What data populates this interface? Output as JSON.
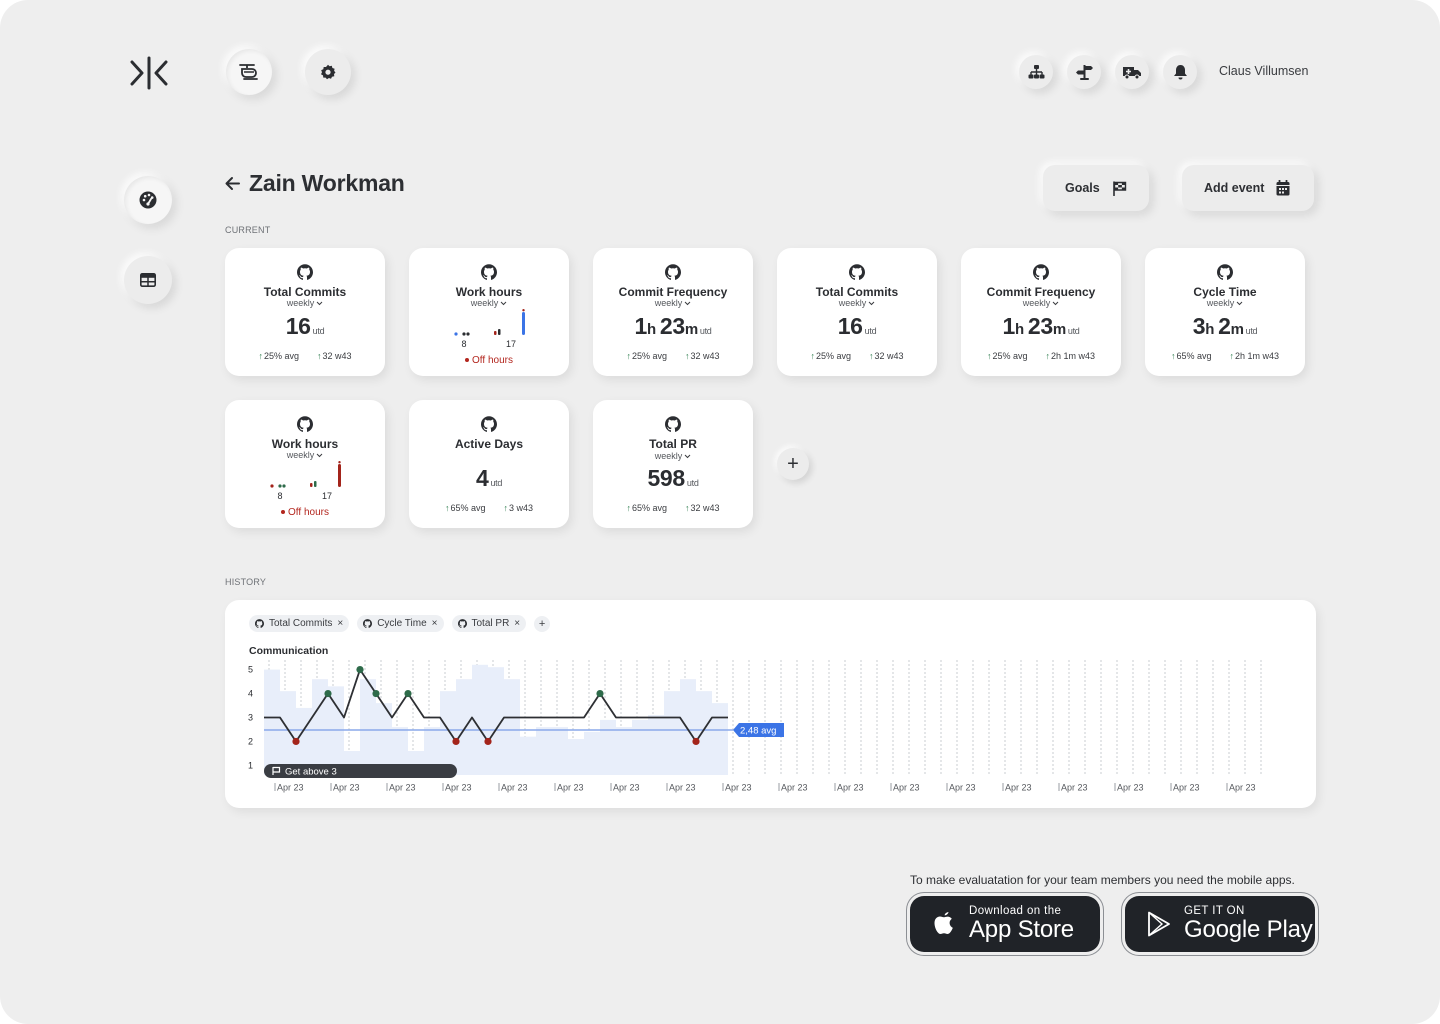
{
  "header": {
    "user_name": "Claus Villumsen",
    "icons": [
      "logo-icon",
      "helicopter-icon",
      "gear-icon",
      "org-chart-icon",
      "signpost-icon",
      "ambulance-icon",
      "bell-icon"
    ]
  },
  "sidebar": {
    "items": [
      {
        "icon": "dashboard-icon",
        "active": true
      },
      {
        "icon": "table-icon",
        "active": false
      }
    ]
  },
  "page": {
    "title": "Zain Workman",
    "goals_label": "Goals",
    "add_event_label": "Add event"
  },
  "sections": {
    "current": "CURRENT",
    "history": "HISTORY"
  },
  "cards": [
    {
      "title": "Total Commits",
      "period": "weekly",
      "value": "16",
      "unit": "utd",
      "stat1": "25% avg",
      "stat2": "32 w43"
    },
    {
      "title": "Work hours",
      "period": "weekly",
      "label_start": "8",
      "label_end": "17",
      "off_hours": "Off hours"
    },
    {
      "title": "Commit Frequency",
      "period": "weekly",
      "h": "1",
      "h_unit": "h",
      "m": "23",
      "m_unit": "m",
      "unit": "utd",
      "stat1": "25% avg",
      "stat2": "32 w43"
    },
    {
      "title": "Total Commits",
      "period": "weekly",
      "value": "16",
      "unit": "utd",
      "stat1": "25% avg",
      "stat2": "32 w43"
    },
    {
      "title": "Commit Frequency",
      "period": "weekly",
      "h": "1",
      "h_unit": "h",
      "m": "23",
      "m_unit": "m",
      "unit": "utd",
      "stat1": "25% avg",
      "stat2": "2h 1m w43"
    },
    {
      "title": "Cycle Time",
      "period": "weekly",
      "h": "3",
      "h_unit": "h",
      "m": "2",
      "m_unit": "m",
      "unit": "utd",
      "stat1": "65% avg",
      "stat2": "2h 1m w43"
    },
    {
      "title": "Work hours",
      "period": "weekly",
      "label_start": "8",
      "label_end": "17",
      "off_hours": "Off hours"
    },
    {
      "title": "Active Days",
      "value": "4",
      "unit": "utd",
      "stat1": "65% avg",
      "stat2": "3 w43"
    },
    {
      "title": "Total PR",
      "period": "weekly",
      "value": "598",
      "unit": "utd",
      "stat1": "65% avg",
      "stat2": "32 w43"
    }
  ],
  "history": {
    "chips": [
      "Total Commits",
      "Cycle Time",
      "Total PR"
    ],
    "chart_title": "Communication"
  },
  "chart_data": {
    "type": "line",
    "title": "Communication",
    "y_ticks": [
      1,
      2,
      3,
      4,
      5
    ],
    "ylim": [
      0.6,
      5.4
    ],
    "line_values": [
      3,
      3,
      2,
      3,
      4,
      3,
      5,
      4,
      3,
      4,
      3,
      3,
      2,
      3,
      2,
      3,
      3,
      3,
      3,
      3,
      3,
      4,
      3,
      3,
      3,
      3,
      3,
      2,
      3,
      3
    ],
    "high_points": [
      4,
      6,
      7,
      9,
      21
    ],
    "low_points": [
      2,
      12,
      14,
      27
    ],
    "bar_values": [
      5,
      4.1,
      3.4,
      4.6,
      4.3,
      1.6,
      4.6,
      3.6,
      2.6,
      1.6,
      2.6,
      4.1,
      4.6,
      5.2,
      5.1,
      4.6,
      2.2,
      2.6,
      2.6,
      2.1,
      2.4,
      2.9,
      2.6,
      2.9,
      3.1,
      4.1,
      4.6,
      4.1,
      3.6
    ],
    "avg": 2.48,
    "avg_label": "2,48 avg",
    "goal_label": "Get above 3",
    "x_tick_label": "Apr 23",
    "x_tick_count": 18,
    "grid": true,
    "colors": {
      "line": "#2d2f33",
      "high": "#2e6b4a",
      "low": "#a3241b",
      "bar": "#e8eefa",
      "avg": "#3b74e6",
      "goal": "#3a3d43"
    }
  },
  "promo": {
    "text": "To make evaluatation for your team members you need the mobile apps.",
    "app_store_small": "Download on the",
    "app_store_big": "App Store",
    "google_small": "GET IT ON",
    "google_big": "Google Play"
  }
}
